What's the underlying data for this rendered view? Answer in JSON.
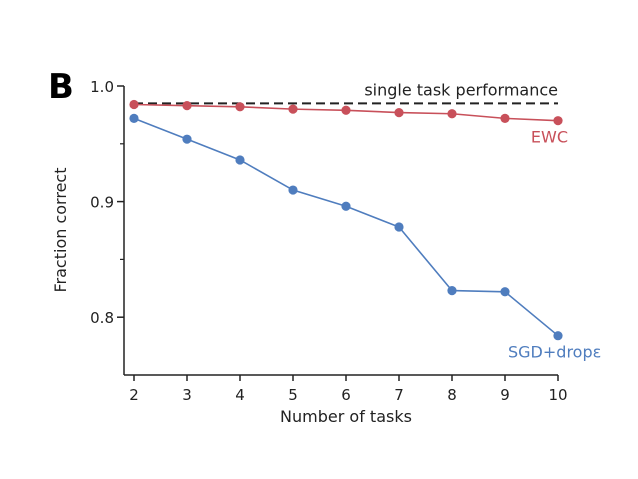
{
  "panel_label": "B",
  "chart_data": {
    "type": "line",
    "xlabel": "Number of tasks",
    "ylabel": "Fraction correct",
    "x": [
      2,
      3,
      4,
      5,
      6,
      7,
      8,
      9,
      10
    ],
    "xlim": [
      2,
      10
    ],
    "ylim": [
      0.75,
      1.0
    ],
    "yticks": [
      0.8,
      0.9,
      1.0
    ],
    "ytick_labels": [
      "0.8",
      "0.9",
      "1.0"
    ],
    "xtick_labels": [
      "2",
      "3",
      "4",
      "5",
      "6",
      "7",
      "8",
      "9",
      "10"
    ],
    "grid": false,
    "series": [
      {
        "name": "EWC",
        "color": "#c8505a",
        "values": [
          0.984,
          0.983,
          0.982,
          0.98,
          0.979,
          0.977,
          0.976,
          0.972,
          0.97
        ]
      },
      {
        "name": "SGD+dropout",
        "label_visible": "SGD+dropε",
        "color": "#4f7dbe",
        "values": [
          0.972,
          0.954,
          0.936,
          0.91,
          0.896,
          0.878,
          0.823,
          0.822,
          0.784
        ]
      }
    ],
    "reference_line": {
      "label": "single task performance",
      "value": 0.985,
      "color": "#222222",
      "style": "dashed"
    }
  }
}
